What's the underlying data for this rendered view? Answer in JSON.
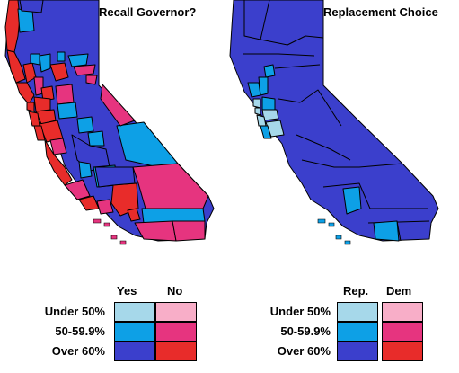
{
  "maps": [
    {
      "title": "Recall Governor?",
      "legend": {
        "columns": [
          "Yes",
          "No"
        ],
        "rows": [
          {
            "label": "Under 50%",
            "colors": [
              "#a6d8ea",
              "#f8aec8"
            ]
          },
          {
            "label": "50-59.9%",
            "colors": [
              "#0da0e6",
              "#e6347f"
            ]
          },
          {
            "label": "Over 60%",
            "colors": [
              "#3b3fcc",
              "#e82c2a"
            ]
          }
        ]
      }
    },
    {
      "title": "Replacement Choice",
      "legend": {
        "columns": [
          "Rep.",
          "Dem"
        ],
        "rows": [
          {
            "label": "Under 50%",
            "colors": [
              "#a6d8ea",
              "#f8aec8"
            ]
          },
          {
            "label": "50-59.9%",
            "colors": [
              "#0da0e6",
              "#e6347f"
            ]
          },
          {
            "label": "Over 60%",
            "colors": [
              "#3b3fcc",
              "#e82c2a"
            ]
          }
        ]
      }
    }
  ]
}
